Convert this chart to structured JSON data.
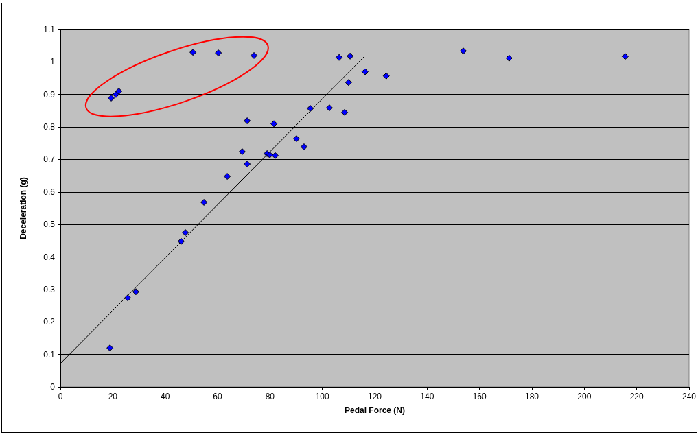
{
  "chart_data": {
    "type": "scatter",
    "xlabel": "Pedal Force (N)",
    "ylabel": "Deceleration (g)",
    "xlim": [
      0,
      240
    ],
    "xticks": [
      0,
      20,
      40,
      60,
      80,
      100,
      120,
      140,
      160,
      180,
      200,
      220,
      240
    ],
    "ylim": [
      0,
      1.1
    ],
    "yticks": [
      0,
      0.1,
      0.2,
      0.3,
      0.4,
      0.5,
      0.6,
      0.7,
      0.8,
      0.9,
      1,
      1.1
    ],
    "grid": "y",
    "marker": "diamond",
    "series": [
      {
        "color": "#0000ff",
        "x": [
          19.4,
          21.2,
          22.3,
          50.6,
          60.3,
          73.9,
          18.9,
          25.7,
          28.8,
          46.1,
          47.7,
          54.8,
          63.7,
          69.4,
          71.3,
          71.3,
          78.9,
          79.9,
          82.0,
          81.5,
          90.1,
          93.0,
          95.4,
          102.7,
          108.5,
          106.4,
          110.6,
          110.0,
          116.3,
          124.4,
          153.8,
          171.3,
          215.6
        ],
        "values": [
          0.889,
          0.9,
          0.91,
          1.03,
          1.028,
          1.02,
          0.12,
          0.274,
          0.293,
          0.448,
          0.475,
          0.568,
          0.648,
          0.724,
          0.819,
          0.686,
          0.718,
          0.714,
          0.712,
          0.81,
          0.764,
          0.739,
          0.857,
          0.859,
          0.845,
          1.014,
          1.018,
          0.937,
          0.97,
          0.957,
          1.034,
          1.012,
          1.017
        ]
      },
      {
        "type": "line",
        "color": "#000000",
        "marker": "none",
        "x": [
          0,
          116
        ],
        "values": [
          0.072,
          1.017
        ]
      }
    ]
  }
}
